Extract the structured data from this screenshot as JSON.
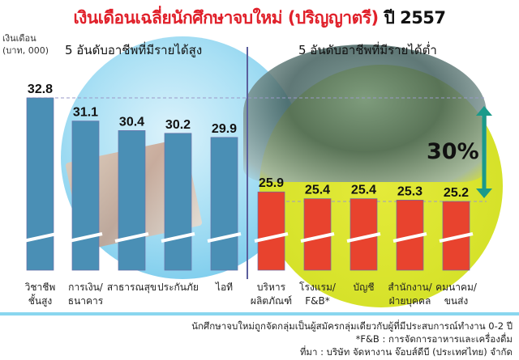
{
  "title_red": "เงินเดือนเฉลี่ยนักศึกษาจบใหม่ (ปริญญาตรี)",
  "title_black": "ปี 2557",
  "chart_data": {
    "type": "bar",
    "ylabel": [
      "เงินเดือน",
      "(บาท, 000)"
    ],
    "ylim": [
      25.2,
      32.8
    ],
    "axis_break": true,
    "groups": [
      {
        "label": "5 อันดับอาชีพที่มีรายได้สูง",
        "color": "#4a8fb5",
        "categories": [
          [
            "วิชาชีพ",
            "ชั้นสูง"
          ],
          [
            "การเงิน/",
            "ธนาคาร"
          ],
          [
            "สาธารณสุข",
            ""
          ],
          [
            "ประกันภัย",
            ""
          ],
          [
            "ไอที",
            ""
          ]
        ],
        "values": [
          32.8,
          31.1,
          30.4,
          30.2,
          29.9
        ]
      },
      {
        "label": "5 อันดับอาชีพที่มีรายได้ต่ำ",
        "color": "#e8432e",
        "categories": [
          [
            "บริหาร",
            "ผลิตภัณฑ์"
          ],
          [
            "โรงแรม/",
            "F&B*"
          ],
          [
            "บัญชี",
            ""
          ],
          [
            "สำนักงาน/",
            "ฝ่ายบุคคล"
          ],
          [
            "คมนาคม/",
            "ขนส่ง"
          ]
        ],
        "values": [
          25.9,
          25.4,
          25.4,
          25.3,
          25.2
        ]
      }
    ],
    "annotation": "30%",
    "annotation_color": "#1a9a8a"
  },
  "notes": [
    "นักศึกษาจบใหม่ถูกจัดกลุ่มเป็นผู้สมัครกลุ่มเดียวกับผู้ที่มีประสบการณ์ทำงาน 0-2 ปี",
    "*F&B : การจัดการอาหารและเครื่องดื่ม",
    "ที่มา : บริษัท จัดหางาน จ๊อบส์ดีบี (ประเทศไทย) จำกัด"
  ]
}
